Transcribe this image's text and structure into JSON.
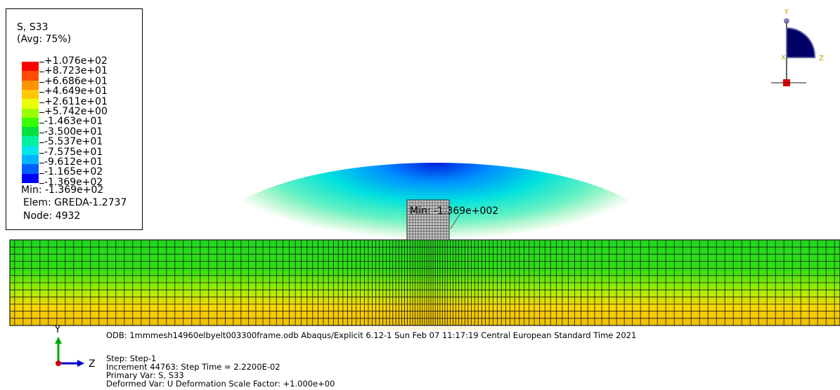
{
  "legend": {
    "title": "S, S33",
    "subtitle": "(Avg: 75%)",
    "labels": [
      "+1.076e+02",
      "+8.723e+01",
      "+6.686e+01",
      "+4.649e+01",
      "+2.611e+01",
      "+5.742e+00",
      "-1.463e+01",
      "-3.500e+01",
      "-5.537e+01",
      "-7.575e+01",
      "-9.612e+01",
      "-1.165e+02",
      "-1.369e+02"
    ],
    "colors": [
      "#ff0000",
      "#ff4a00",
      "#ff9300",
      "#ffc800",
      "#e8ff00",
      "#9cff00",
      "#38ff00",
      "#00e040",
      "#00f0a0",
      "#00e8e8",
      "#00b4ff",
      "#0060ff",
      "#0000ff"
    ],
    "min_text": "Min: -1.369e+02",
    "elem_text": "Elem: GREDA-1.2737",
    "node_text": "Node: 4932"
  },
  "viewport": {
    "min_annotation": "Min: -1.369e+002",
    "top_triad": {
      "y": "Y",
      "x": "X",
      "z": "Z"
    },
    "bottom_triad": {
      "y": "Y",
      "z": "Z"
    }
  },
  "info": {
    "odb_line": "ODB: 1mmmesh14960elbyelt003300frame.odb    Abaqus/Explicit 6.12-1    Sun Feb 07 11:17:19 Central European Standard Time 2021",
    "step": "Step: Step-1",
    "increment": "Increment     44763: Step Time =   2.2200E-02",
    "primary_var": "Primary Var: S, S33",
    "deformed_var": "Deformed Var: U   Deformation Scale Factor: +1.000e+00"
  },
  "colors": {
    "legend_border": "#000000",
    "triad_body": "#000066",
    "triad_origin": "#cc0000",
    "axis_y": "#00aa00",
    "axis_z": "#0000cc"
  }
}
